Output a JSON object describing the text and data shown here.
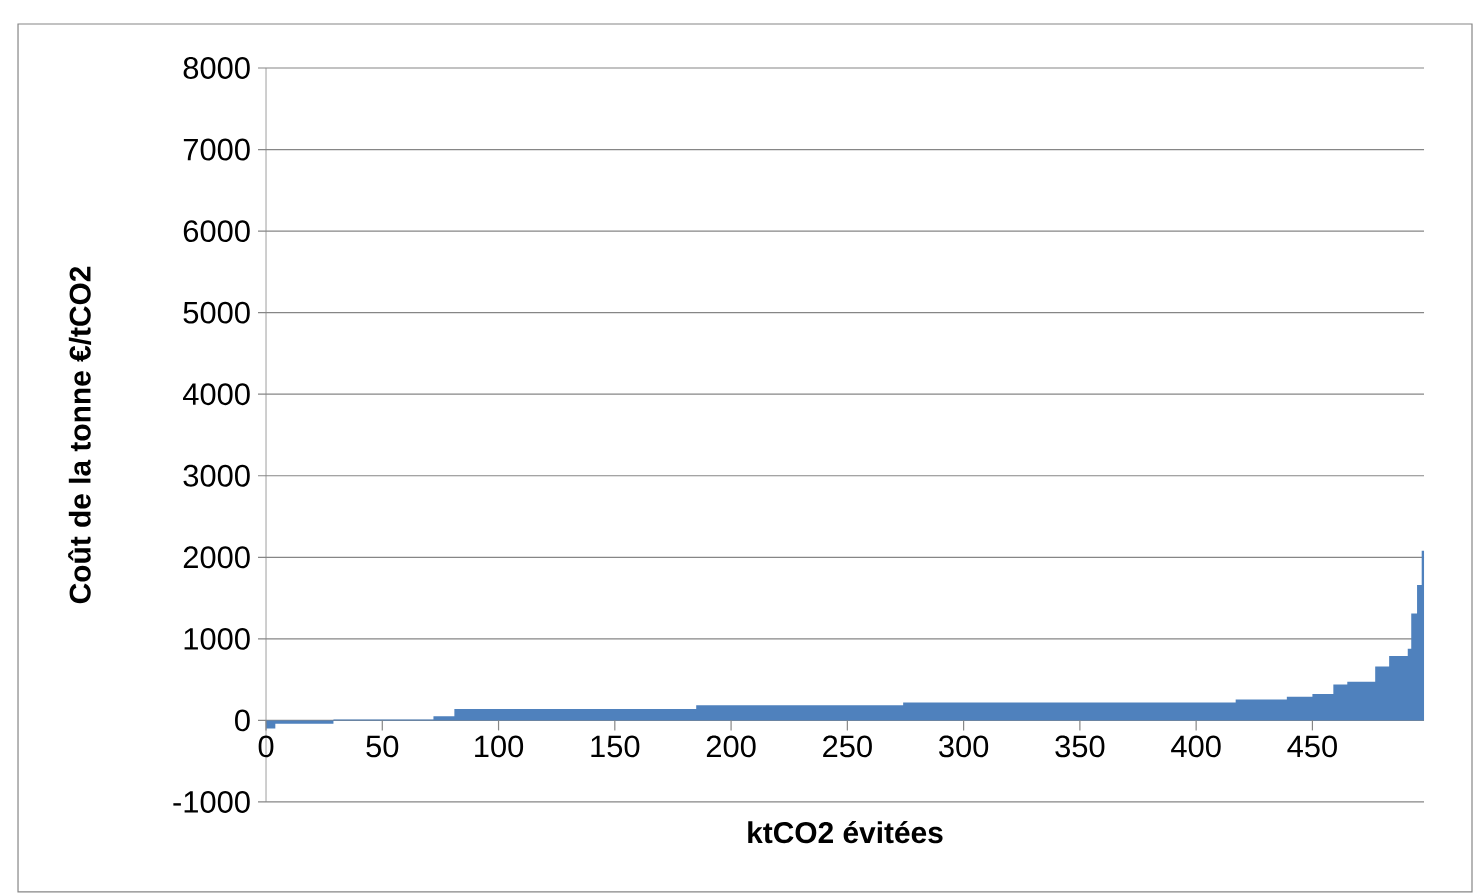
{
  "chart_data": {
    "type": "area",
    "xlabel": "ktCO2 évitées",
    "ylabel": "Coût de la tonne €/tCO2",
    "color": "#4f81bd",
    "x": [
      0,
      4,
      4,
      29,
      29,
      72,
      72,
      81,
      81,
      185,
      185,
      274,
      274,
      417,
      417,
      439,
      439,
      450,
      450,
      459,
      459,
      465,
      465,
      477,
      477,
      483,
      483,
      491,
      491,
      492.5,
      492.5,
      495,
      495,
      497,
      497,
      498
    ],
    "values": [
      -100,
      -100,
      -40,
      -40,
      10,
      10,
      50,
      50,
      140,
      140,
      185,
      185,
      220,
      220,
      255,
      255,
      290,
      290,
      325,
      325,
      440,
      440,
      475,
      475,
      660,
      660,
      790,
      790,
      880,
      880,
      1310,
      1310,
      1660,
      1660,
      2080,
      2080
    ],
    "xlim": [
      0,
      498
    ],
    "xticks": [
      0,
      50,
      100,
      150,
      200,
      250,
      300,
      350,
      400,
      450
    ],
    "ylim": [
      -1000,
      8000
    ],
    "yticks": [
      -1000,
      0,
      1000,
      2000,
      3000,
      4000,
      5000,
      6000,
      7000,
      8000
    ],
    "grid": "y"
  }
}
